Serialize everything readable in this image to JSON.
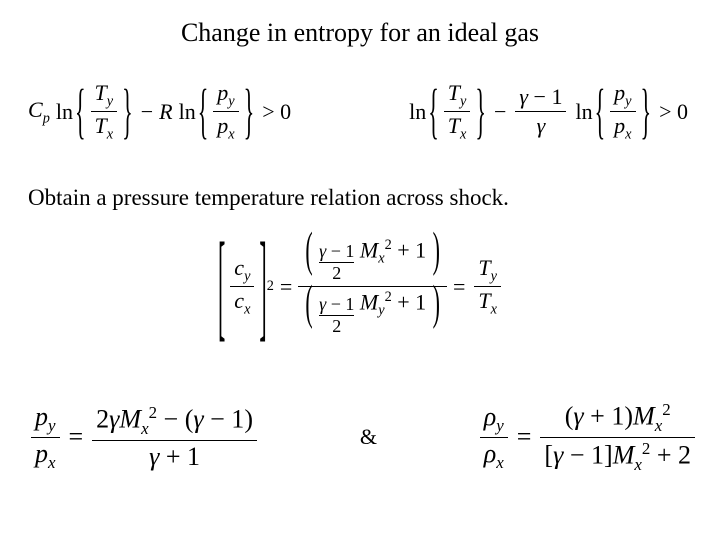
{
  "title": "Change in entropy for an ideal gas",
  "line2": "Obtain a pressure temperature relation across shock.",
  "ampersand": "&",
  "sym": {
    "Cp": "C",
    "Cp_sub": "p",
    "ln": "ln",
    "T": "T",
    "p": "p",
    "R": "R",
    "y": "y",
    "x": "x",
    "gt0": "> 0",
    "gamma": "γ",
    "minus1": "− 1",
    "minus": "−",
    "eq": "=",
    "c": "c",
    "M": "M",
    "Msub": "x",
    "two": "2",
    "sq": "2",
    "plus1": "+ 1",
    "plus2": "+ 2",
    "rho": "ρ",
    "plus": "+",
    "lparen": "(",
    "rparen": ")"
  }
}
